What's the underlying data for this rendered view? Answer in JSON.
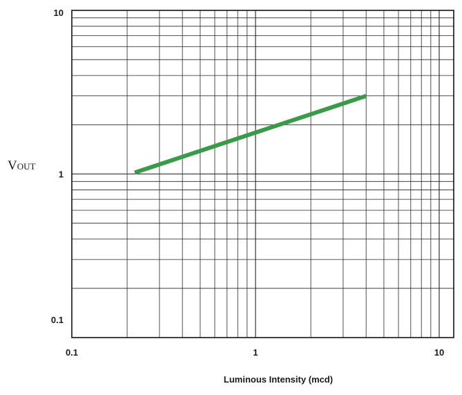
{
  "chart_data": {
    "type": "line",
    "xscale": "log",
    "yscale": "log",
    "xlim": [
      0.1,
      12
    ],
    "ylim": [
      0.1,
      10
    ],
    "grid": true,
    "xlabel": "Luminous Intensity (mcd)",
    "ylabel": "Vout",
    "xticks": [
      {
        "value": 0.1,
        "label": "0.1"
      },
      {
        "value": 1,
        "label": "1"
      },
      {
        "value": 10,
        "label": "10"
      }
    ],
    "yticks": [
      {
        "value": 0.1,
        "label": "0.1"
      },
      {
        "value": 1,
        "label": "1"
      },
      {
        "value": 10,
        "label": "10"
      }
    ],
    "series": [
      {
        "color": "#3a9a4a",
        "points": [
          {
            "x": 0.22,
            "y": 1.02
          },
          {
            "x": 4.0,
            "y": 3.0
          }
        ]
      }
    ]
  }
}
